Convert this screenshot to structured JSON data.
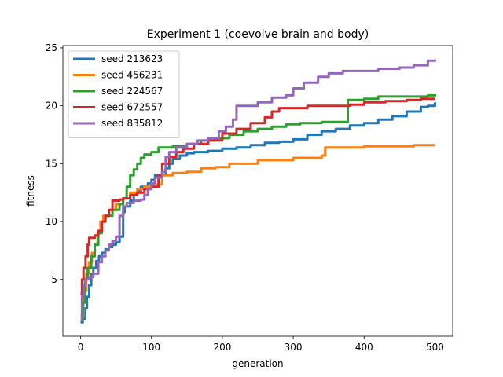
{
  "chart_data": {
    "type": "line",
    "title": "Experiment 1 (coevolve brain and body)",
    "xlabel": "generation",
    "ylabel": "fitness",
    "xlim": [
      -25,
      525
    ],
    "ylim": [
      0.1,
      25.2
    ],
    "xticks": [
      0,
      100,
      200,
      300,
      400,
      500
    ],
    "yticks": [
      5,
      10,
      15,
      20,
      25
    ],
    "grid": false,
    "legend": "upper-left",
    "series": [
      {
        "name": "seed 213623",
        "color": "#1f77b4",
        "points": [
          [
            0,
            1.3
          ],
          [
            3,
            1.6
          ],
          [
            6,
            2.5
          ],
          [
            9,
            3.5
          ],
          [
            12,
            4.5
          ],
          [
            15,
            5.5
          ],
          [
            18,
            6.0
          ],
          [
            22,
            6.6
          ],
          [
            26,
            7.0
          ],
          [
            30,
            7.3
          ],
          [
            35,
            7.6
          ],
          [
            40,
            7.8
          ],
          [
            45,
            8.0
          ],
          [
            50,
            8.2
          ],
          [
            55,
            8.7
          ],
          [
            60,
            10.8
          ],
          [
            62,
            11.3
          ],
          [
            70,
            11.8
          ],
          [
            75,
            12.3
          ],
          [
            80,
            12.6
          ],
          [
            85,
            13.0
          ],
          [
            95,
            13.3
          ],
          [
            100,
            13.6
          ],
          [
            105,
            14.0
          ],
          [
            110,
            14.0
          ],
          [
            120,
            14.6
          ],
          [
            125,
            15.0
          ],
          [
            130,
            15.4
          ],
          [
            140,
            15.7
          ],
          [
            150,
            15.9
          ],
          [
            160,
            16.0
          ],
          [
            180,
            16.1
          ],
          [
            200,
            16.3
          ],
          [
            220,
            16.4
          ],
          [
            240,
            16.6
          ],
          [
            260,
            16.8
          ],
          [
            280,
            16.9
          ],
          [
            300,
            17.1
          ],
          [
            320,
            17.5
          ],
          [
            340,
            17.8
          ],
          [
            360,
            18.0
          ],
          [
            375,
            18.0
          ],
          [
            380,
            18.3
          ],
          [
            400,
            18.5
          ],
          [
            420,
            18.8
          ],
          [
            440,
            19.1
          ],
          [
            460,
            19.5
          ],
          [
            480,
            19.9
          ],
          [
            490,
            20.0
          ],
          [
            500,
            20.3
          ]
        ]
      },
      {
        "name": "seed 456231",
        "color": "#ff7f0e",
        "points": [
          [
            0,
            1.8
          ],
          [
            4,
            4.0
          ],
          [
            8,
            5.5
          ],
          [
            12,
            6.5
          ],
          [
            16,
            7.3
          ],
          [
            20,
            8.0
          ],
          [
            24,
            9.0
          ],
          [
            28,
            10.0
          ],
          [
            32,
            10.5
          ],
          [
            40,
            11.0
          ],
          [
            50,
            11.5
          ],
          [
            60,
            12.0
          ],
          [
            70,
            12.5
          ],
          [
            80,
            12.8
          ],
          [
            90,
            13.0
          ],
          [
            100,
            13.2
          ],
          [
            115,
            14.0
          ],
          [
            130,
            14.2
          ],
          [
            150,
            14.3
          ],
          [
            170,
            14.6
          ],
          [
            190,
            14.7
          ],
          [
            210,
            15.0
          ],
          [
            250,
            15.3
          ],
          [
            300,
            15.5
          ],
          [
            340,
            15.7
          ],
          [
            345,
            16.4
          ],
          [
            360,
            16.4
          ],
          [
            400,
            16.5
          ],
          [
            440,
            16.5
          ],
          [
            470,
            16.6
          ],
          [
            500,
            16.6
          ]
        ]
      },
      {
        "name": "seed 224567",
        "color": "#2ca02c",
        "points": [
          [
            0,
            1.5
          ],
          [
            3,
            3.0
          ],
          [
            6,
            5.0
          ],
          [
            10,
            6.0
          ],
          [
            15,
            7.0
          ],
          [
            20,
            8.0
          ],
          [
            25,
            9.0
          ],
          [
            30,
            10.0
          ],
          [
            35,
            10.5
          ],
          [
            45,
            11.0
          ],
          [
            55,
            11.5
          ],
          [
            60,
            12.0
          ],
          [
            65,
            13.0
          ],
          [
            70,
            14.0
          ],
          [
            75,
            14.5
          ],
          [
            80,
            15.0
          ],
          [
            85,
            15.5
          ],
          [
            90,
            15.8
          ],
          [
            100,
            16.0
          ],
          [
            110,
            16.4
          ],
          [
            130,
            16.5
          ],
          [
            150,
            16.7
          ],
          [
            170,
            17.0
          ],
          [
            190,
            17.2
          ],
          [
            210,
            17.5
          ],
          [
            230,
            17.8
          ],
          [
            250,
            18.0
          ],
          [
            270,
            18.2
          ],
          [
            290,
            18.4
          ],
          [
            310,
            18.5
          ],
          [
            340,
            18.6
          ],
          [
            375,
            18.6
          ],
          [
            377,
            20.5
          ],
          [
            400,
            20.6
          ],
          [
            420,
            20.8
          ],
          [
            460,
            20.8
          ],
          [
            490,
            20.9
          ],
          [
            500,
            21.0
          ]
        ]
      },
      {
        "name": "seed 672557",
        "color": "#d62728",
        "points": [
          [
            0,
            3.7
          ],
          [
            2,
            5.0
          ],
          [
            4,
            6.0
          ],
          [
            7,
            7.0
          ],
          [
            10,
            8.0
          ],
          [
            12,
            8.6
          ],
          [
            20,
            8.8
          ],
          [
            25,
            9.2
          ],
          [
            30,
            10.0
          ],
          [
            35,
            10.5
          ],
          [
            40,
            11.0
          ],
          [
            45,
            11.8
          ],
          [
            55,
            11.9
          ],
          [
            60,
            12.0
          ],
          [
            70,
            12.3
          ],
          [
            80,
            12.5
          ],
          [
            90,
            12.8
          ],
          [
            100,
            13.0
          ],
          [
            110,
            14.0
          ],
          [
            115,
            15.0
          ],
          [
            125,
            15.6
          ],
          [
            135,
            16.0
          ],
          [
            145,
            16.3
          ],
          [
            160,
            16.7
          ],
          [
            180,
            17.0
          ],
          [
            200,
            17.6
          ],
          [
            220,
            18.0
          ],
          [
            240,
            18.5
          ],
          [
            260,
            19.0
          ],
          [
            270,
            19.5
          ],
          [
            280,
            19.8
          ],
          [
            300,
            19.8
          ],
          [
            320,
            20.0
          ],
          [
            350,
            20.0
          ],
          [
            380,
            20.1
          ],
          [
            400,
            20.3
          ],
          [
            430,
            20.4
          ],
          [
            460,
            20.5
          ],
          [
            480,
            20.6
          ],
          [
            500,
            20.6
          ]
        ]
      },
      {
        "name": "seed 835812",
        "color": "#9467bd",
        "points": [
          [
            0,
            1.5
          ],
          [
            2,
            3.5
          ],
          [
            4,
            4.5
          ],
          [
            7,
            5.0
          ],
          [
            12,
            5.2
          ],
          [
            18,
            5.5
          ],
          [
            25,
            6.5
          ],
          [
            30,
            7.0
          ],
          [
            35,
            7.5
          ],
          [
            40,
            8.0
          ],
          [
            45,
            8.3
          ],
          [
            50,
            8.7
          ],
          [
            55,
            10.5
          ],
          [
            60,
            11.3
          ],
          [
            65,
            11.6
          ],
          [
            75,
            11.8
          ],
          [
            85,
            11.9
          ],
          [
            90,
            12.3
          ],
          [
            95,
            12.8
          ],
          [
            100,
            13.3
          ],
          [
            105,
            13.8
          ],
          [
            115,
            14.3
          ],
          [
            120,
            15.6
          ],
          [
            125,
            16.0
          ],
          [
            135,
            16.4
          ],
          [
            150,
            16.7
          ],
          [
            165,
            17.0
          ],
          [
            180,
            17.2
          ],
          [
            195,
            17.8
          ],
          [
            205,
            18.2
          ],
          [
            215,
            18.8
          ],
          [
            220,
            20.0
          ],
          [
            250,
            20.3
          ],
          [
            270,
            20.7
          ],
          [
            290,
            20.9
          ],
          [
            300,
            21.5
          ],
          [
            315,
            22.0
          ],
          [
            335,
            22.5
          ],
          [
            350,
            22.8
          ],
          [
            370,
            23.0
          ],
          [
            400,
            23.0
          ],
          [
            420,
            23.2
          ],
          [
            450,
            23.3
          ],
          [
            470,
            23.5
          ],
          [
            490,
            23.9
          ],
          [
            500,
            24.0
          ]
        ]
      }
    ]
  }
}
